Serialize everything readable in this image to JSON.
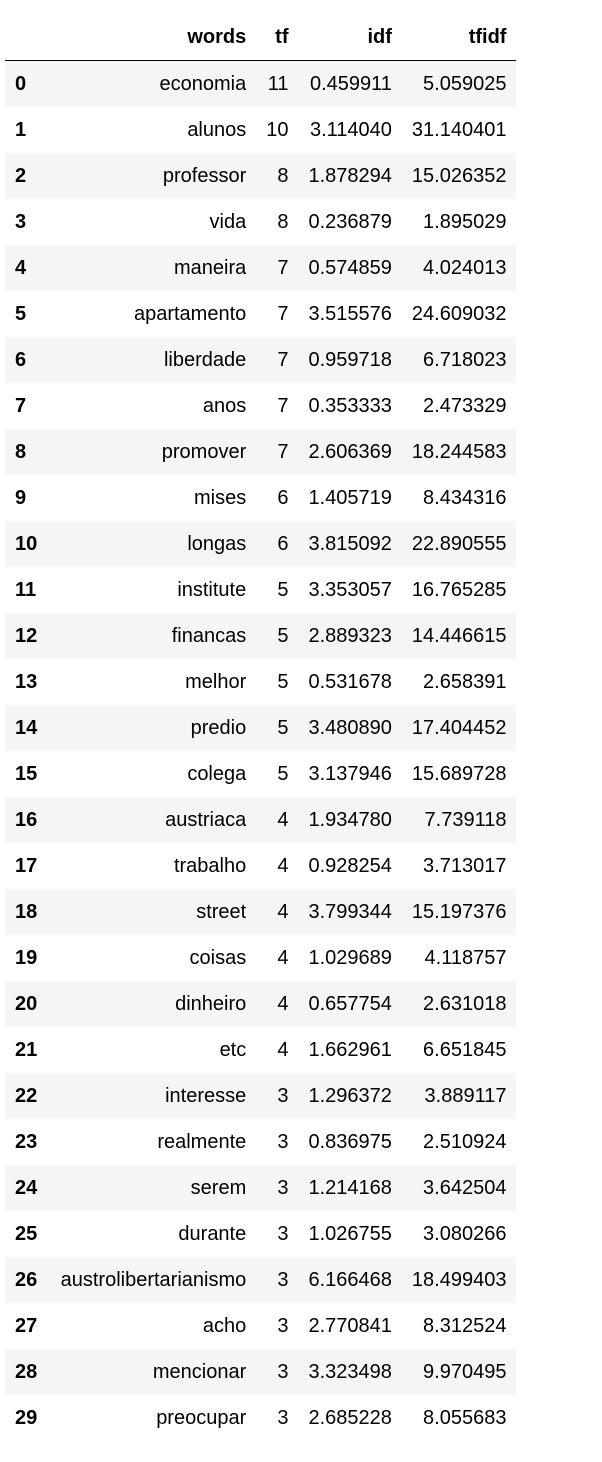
{
  "table": {
    "columns": [
      "words",
      "tf",
      "idf",
      "tfidf"
    ],
    "rows": [
      {
        "index": "0",
        "words": "economia",
        "tf": "11",
        "idf": "0.459911",
        "tfidf": "5.059025"
      },
      {
        "index": "1",
        "words": "alunos",
        "tf": "10",
        "idf": "3.114040",
        "tfidf": "31.140401"
      },
      {
        "index": "2",
        "words": "professor",
        "tf": "8",
        "idf": "1.878294",
        "tfidf": "15.026352"
      },
      {
        "index": "3",
        "words": "vida",
        "tf": "8",
        "idf": "0.236879",
        "tfidf": "1.895029"
      },
      {
        "index": "4",
        "words": "maneira",
        "tf": "7",
        "idf": "0.574859",
        "tfidf": "4.024013"
      },
      {
        "index": "5",
        "words": "apartamento",
        "tf": "7",
        "idf": "3.515576",
        "tfidf": "24.609032"
      },
      {
        "index": "6",
        "words": "liberdade",
        "tf": "7",
        "idf": "0.959718",
        "tfidf": "6.718023"
      },
      {
        "index": "7",
        "words": "anos",
        "tf": "7",
        "idf": "0.353333",
        "tfidf": "2.473329"
      },
      {
        "index": "8",
        "words": "promover",
        "tf": "7",
        "idf": "2.606369",
        "tfidf": "18.244583"
      },
      {
        "index": "9",
        "words": "mises",
        "tf": "6",
        "idf": "1.405719",
        "tfidf": "8.434316"
      },
      {
        "index": "10",
        "words": "longas",
        "tf": "6",
        "idf": "3.815092",
        "tfidf": "22.890555"
      },
      {
        "index": "11",
        "words": "institute",
        "tf": "5",
        "idf": "3.353057",
        "tfidf": "16.765285"
      },
      {
        "index": "12",
        "words": "financas",
        "tf": "5",
        "idf": "2.889323",
        "tfidf": "14.446615"
      },
      {
        "index": "13",
        "words": "melhor",
        "tf": "5",
        "idf": "0.531678",
        "tfidf": "2.658391"
      },
      {
        "index": "14",
        "words": "predio",
        "tf": "5",
        "idf": "3.480890",
        "tfidf": "17.404452"
      },
      {
        "index": "15",
        "words": "colega",
        "tf": "5",
        "idf": "3.137946",
        "tfidf": "15.689728"
      },
      {
        "index": "16",
        "words": "austriaca",
        "tf": "4",
        "idf": "1.934780",
        "tfidf": "7.739118"
      },
      {
        "index": "17",
        "words": "trabalho",
        "tf": "4",
        "idf": "0.928254",
        "tfidf": "3.713017"
      },
      {
        "index": "18",
        "words": "street",
        "tf": "4",
        "idf": "3.799344",
        "tfidf": "15.197376"
      },
      {
        "index": "19",
        "words": "coisas",
        "tf": "4",
        "idf": "1.029689",
        "tfidf": "4.118757"
      },
      {
        "index": "20",
        "words": "dinheiro",
        "tf": "4",
        "idf": "0.657754",
        "tfidf": "2.631018"
      },
      {
        "index": "21",
        "words": "etc",
        "tf": "4",
        "idf": "1.662961",
        "tfidf": "6.651845"
      },
      {
        "index": "22",
        "words": "interesse",
        "tf": "3",
        "idf": "1.296372",
        "tfidf": "3.889117"
      },
      {
        "index": "23",
        "words": "realmente",
        "tf": "3",
        "idf": "0.836975",
        "tfidf": "2.510924"
      },
      {
        "index": "24",
        "words": "serem",
        "tf": "3",
        "idf": "1.214168",
        "tfidf": "3.642504"
      },
      {
        "index": "25",
        "words": "durante",
        "tf": "3",
        "idf": "1.026755",
        "tfidf": "3.080266"
      },
      {
        "index": "26",
        "words": "austrolibertarianismo",
        "tf": "3",
        "idf": "6.166468",
        "tfidf": "18.499403"
      },
      {
        "index": "27",
        "words": "acho",
        "tf": "3",
        "idf": "2.770841",
        "tfidf": "8.312524"
      },
      {
        "index": "28",
        "words": "mencionar",
        "tf": "3",
        "idf": "3.323498",
        "tfidf": "9.970495"
      },
      {
        "index": "29",
        "words": "preocupar",
        "tf": "3",
        "idf": "2.685228",
        "tfidf": "8.055683"
      }
    ]
  }
}
